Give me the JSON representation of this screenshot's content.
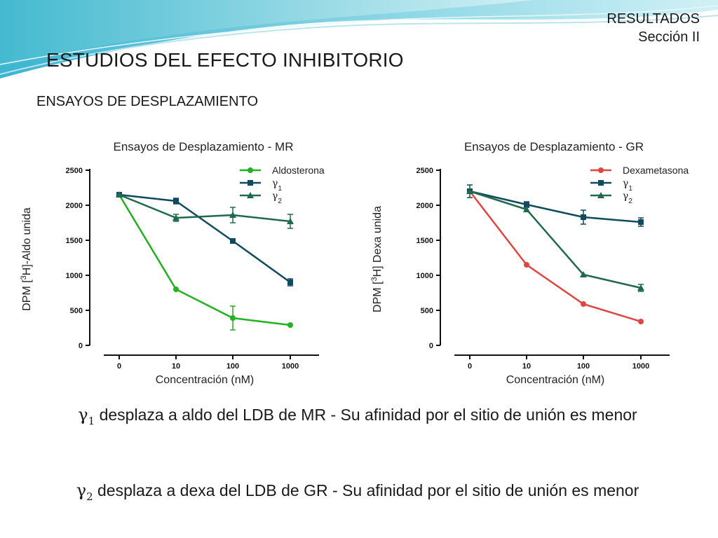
{
  "header": {
    "section_label": "RESULTADOS",
    "section_sub": "Sección II",
    "title": "ESTUDIOS DEL EFECTO INHIBITORIO",
    "subtitle": "ENSAYOS DE DESPLAZAMIENTO"
  },
  "colors": {
    "aldosterona": "#22b11f",
    "dexametasona": "#e0453f",
    "gamma1": "#0f4a60",
    "gamma2": "#1f6a4c",
    "axis": "#111111"
  },
  "chart_data": [
    {
      "type": "line",
      "title": "Ensayos de Desplazamiento - MR",
      "xlabel": "Concentración (nM)",
      "ylabel": "DPM [3H]-Aldo unida",
      "categories": [
        "0",
        "10",
        "100",
        "1000"
      ],
      "ylim": [
        0,
        2500
      ],
      "yticks": [
        "0",
        "500",
        "1000",
        "1500",
        "2000",
        "2500"
      ],
      "legend_position": "top-right",
      "grid": false,
      "series": [
        {
          "name": "Aldosterona",
          "color_key": "aldosterona",
          "marker": "circle",
          "values": [
            2150,
            800,
            390,
            290
          ],
          "errors": [
            0,
            0,
            170,
            0
          ]
        },
        {
          "name": "γ1",
          "color_key": "gamma1",
          "marker": "square",
          "values": [
            2150,
            2060,
            1490,
            900
          ],
          "errors": [
            0,
            40,
            0,
            50
          ]
        },
        {
          "name": "γ2",
          "color_key": "gamma2",
          "marker": "triangle",
          "values": [
            2150,
            1820,
            1860,
            1770
          ],
          "errors": [
            0,
            50,
            110,
            100
          ]
        }
      ]
    },
    {
      "type": "line",
      "title": "Ensayos de Desplazamiento - GR",
      "xlabel": "Concentración (nM)",
      "ylabel": "DPM [3H] Dexa unida",
      "categories": [
        "0",
        "10",
        "100",
        "1000"
      ],
      "ylim": [
        0,
        2500
      ],
      "yticks": [
        "0",
        "500",
        "1000",
        "1500",
        "2000",
        "2500"
      ],
      "legend_position": "top-right",
      "grid": false,
      "series": [
        {
          "name": "Dexametasona",
          "color_key": "dexametasona",
          "marker": "circle",
          "values": [
            2200,
            1150,
            590,
            340
          ],
          "errors": [
            0,
            0,
            0,
            0
          ]
        },
        {
          "name": "γ1",
          "color_key": "gamma1",
          "marker": "square",
          "values": [
            2200,
            2010,
            1830,
            1760
          ],
          "errors": [
            90,
            40,
            100,
            60
          ]
        },
        {
          "name": "γ2",
          "color_key": "gamma2",
          "marker": "triangle",
          "values": [
            2200,
            1940,
            1010,
            820
          ],
          "errors": [
            0,
            0,
            0,
            50
          ]
        }
      ]
    }
  ],
  "conclusions": [
    {
      "symbol": "γ",
      "sub": "1",
      "text": "desplaza a aldo del LDB de MR - Su afinidad por el sitio de unión es menor"
    },
    {
      "symbol": "γ",
      "sub": "2",
      "text": "desplaza a dexa del LDB de GR - Su afinidad por el sitio de unión es menor"
    }
  ]
}
